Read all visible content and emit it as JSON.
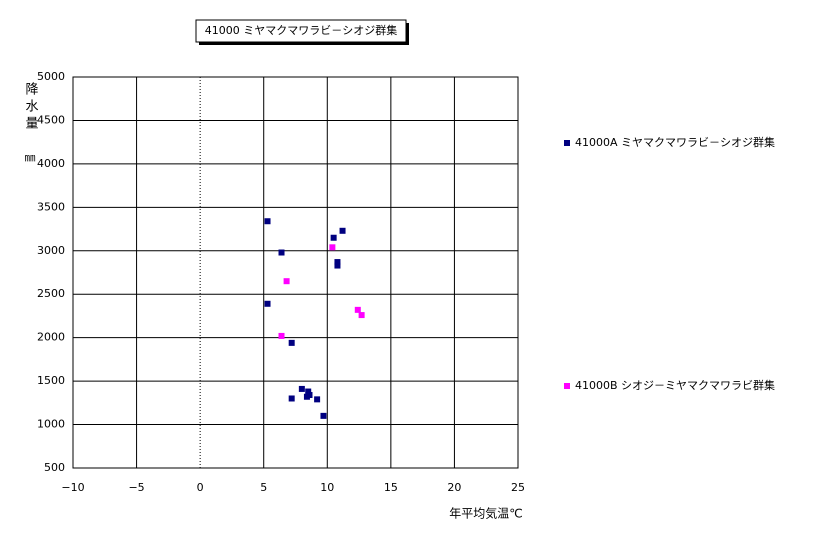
{
  "chart_data": {
    "type": "scatter",
    "title": "41000 ミヤマクマワラビ－シオジ群集",
    "xlabel": "年平均気温℃",
    "ylabel": "降水量",
    "yunit": "㎜",
    "xlim": [
      -10,
      25
    ],
    "xticks": [
      {
        "value": -10,
        "label": "−10"
      },
      {
        "value": -5,
        "label": "−5"
      },
      0,
      5,
      10,
      15,
      20,
      25
    ],
    "ylim": [
      500,
      5000
    ],
    "yticks": [
      500,
      1000,
      1500,
      2000,
      2500,
      3000,
      3500,
      4000,
      4500,
      5000
    ],
    "grid": true,
    "legend": "right",
    "series": [
      {
        "name": "41000A ミヤマクマワラビ－シオジ群集",
        "color": "#000080",
        "x": [
          5.3,
          6.4,
          5.3,
          7.2,
          10.5,
          11.2,
          10.8,
          10.8,
          8.0,
          8.6,
          8.4,
          8.5,
          7.2,
          9.2,
          9.7
        ],
        "values": [
          3340,
          2980,
          2390,
          1940,
          3150,
          3230,
          2870,
          2830,
          1410,
          1340,
          1320,
          1380,
          1300,
          1290,
          1100
        ]
      },
      {
        "name": "41000B シオジ－ミヤマクマワラビ群集",
        "color": "#ff00ff",
        "x": [
          10.4,
          6.8,
          6.4,
          12.4,
          12.7
        ],
        "values": [
          3040,
          2650,
          2020,
          2320,
          2260
        ]
      }
    ]
  }
}
